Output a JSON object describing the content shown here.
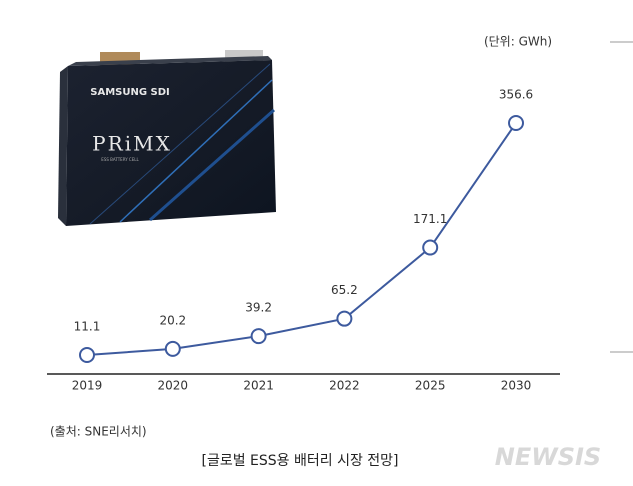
{
  "chart_data": {
    "type": "line",
    "unit_note": "(단위: GWh)",
    "categories": [
      "2019",
      "2020",
      "2021",
      "2022",
      "2025",
      "2030"
    ],
    "values": [
      11.1,
      20.2,
      39.2,
      65.2,
      171.1,
      356.6
    ],
    "color": "#3d5a9e",
    "source": "(출처: SNE리서치)",
    "caption": "[글로벌 ESS용 배터리 시장 전망]",
    "watermark": "NEWSIS",
    "product": {
      "brand": "SAMSUNG SDI",
      "name": "PRiMX",
      "subtitle": "ESS BATTERY CELL"
    }
  }
}
